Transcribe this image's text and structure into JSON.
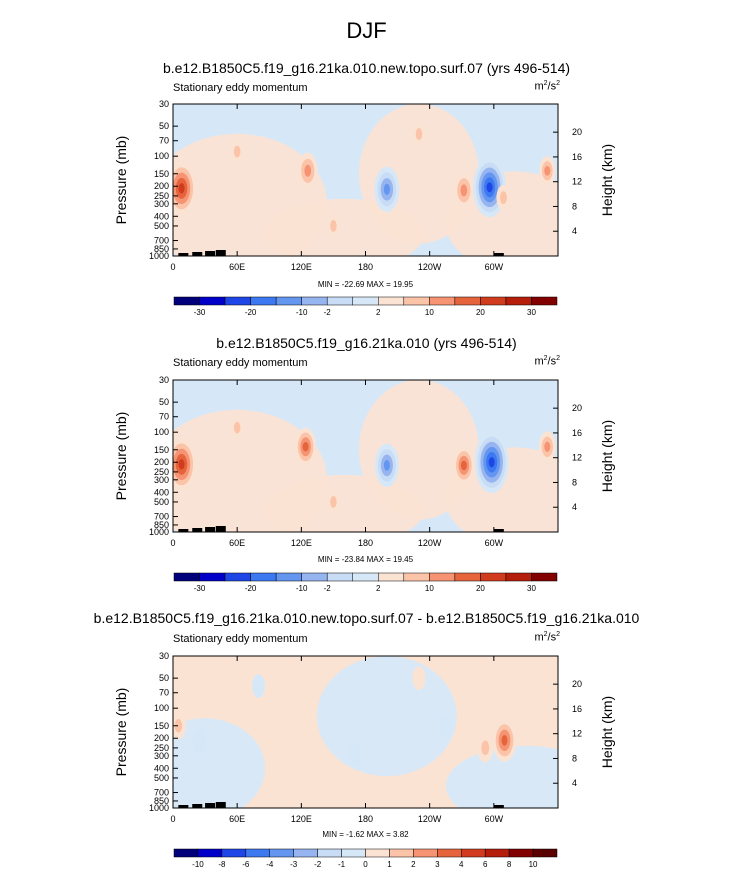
{
  "title": "DJF",
  "panels": [
    {
      "title": "b.e12.B1850C5.f19_g16.21ka.010.new.topo.surf.07 (yrs 496-514)",
      "left_string": "Stationary eddy momentum",
      "units": {
        "base": "m",
        "exp1": "2",
        "slash": "/s",
        "exp2": "2"
      },
      "minmax": "MIN = -22.69   MAX =  19.95"
    },
    {
      "title": "b.e12.B1850C5.f19_g16.21ka.010 (yrs 496-514)",
      "left_string": "Stationary eddy momentum",
      "units": {
        "base": "m",
        "exp1": "2",
        "slash": "/s",
        "exp2": "2"
      },
      "minmax": "MIN = -23.84   MAX =  19.45"
    },
    {
      "title": "b.e12.B1850C5.f19_g16.21ka.010.new.topo.surf.07 - b.e12.B1850C5.f19_g16.21ka.010",
      "left_string": "Stationary eddy momentum",
      "units": {
        "base": "m",
        "exp1": "2",
        "slash": "/s",
        "exp2": "2"
      },
      "minmax": "MIN =  -1.62   MAX =   3.82"
    }
  ],
  "chart_data": [
    {
      "type": "heatmap",
      "title": "b.e12.B1850C5.f19_g16.21ka.010.new.topo.surf.07 (yrs 496-514)",
      "ylabel": "Pressure (mb)",
      "ylabel_right": "Height (km)",
      "x_ticks": [
        "0",
        "60E",
        "120E",
        "180",
        "120W",
        "60W"
      ],
      "x_tick_values": [
        0,
        60,
        120,
        180,
        240,
        300
      ],
      "xlim": [
        0,
        360
      ],
      "y_ticks": [
        "30",
        "50",
        "70",
        "100",
        "150",
        "200",
        "250",
        "300",
        "400",
        "500",
        "700",
        "850",
        "1000"
      ],
      "y_tick_values": [
        30,
        50,
        70,
        100,
        150,
        200,
        250,
        300,
        400,
        500,
        700,
        850,
        1000
      ],
      "ylim": [
        1000,
        30
      ],
      "y_scale": "log",
      "right_ticks": [
        "4",
        "8",
        "12",
        "16",
        "20"
      ],
      "right_tick_values": [
        4,
        8,
        12,
        16,
        20
      ],
      "colorbar_labels": [
        "-30",
        "-20",
        "-10",
        "-2",
        "2",
        "10",
        "20",
        "30"
      ],
      "min": -22.69,
      "max": 19.95,
      "features": [
        {
          "lon": 8,
          "p": 210,
          "value": 18
        },
        {
          "lon": 126,
          "p": 140,
          "value": 9
        },
        {
          "lon": 200,
          "p": 215,
          "value": -14
        },
        {
          "lon": 272,
          "p": 220,
          "value": 9
        },
        {
          "lon": 296,
          "p": 205,
          "value": -22
        },
        {
          "lon": 309,
          "p": 260,
          "value": 3
        },
        {
          "lon": 350,
          "p": 140,
          "value": 5
        },
        {
          "lon": 60,
          "p": 90,
          "value": 2
        },
        {
          "lon": 230,
          "p": 60,
          "value": 2
        },
        {
          "lon": 150,
          "p": 500,
          "value": 2
        }
      ]
    },
    {
      "type": "heatmap",
      "title": "b.e12.B1850C5.f19_g16.21ka.010 (yrs 496-514)",
      "ylabel": "Pressure (mb)",
      "ylabel_right": "Height (km)",
      "x_ticks": [
        "0",
        "60E",
        "120E",
        "180",
        "120W",
        "60W"
      ],
      "x_tick_values": [
        0,
        60,
        120,
        180,
        240,
        300
      ],
      "xlim": [
        0,
        360
      ],
      "y_ticks": [
        "30",
        "50",
        "70",
        "100",
        "150",
        "200",
        "250",
        "300",
        "400",
        "500",
        "700",
        "850",
        "1000"
      ],
      "y_tick_values": [
        30,
        50,
        70,
        100,
        150,
        200,
        250,
        300,
        400,
        500,
        700,
        850,
        1000
      ],
      "ylim": [
        1000,
        30
      ],
      "y_scale": "log",
      "right_ticks": [
        "4",
        "8",
        "12",
        "16",
        "20"
      ],
      "right_tick_values": [
        4,
        8,
        12,
        16,
        20
      ],
      "colorbar_labels": [
        "-30",
        "-20",
        "-10",
        "-2",
        "2",
        "10",
        "20",
        "30"
      ],
      "min": -23.84,
      "max": 19.45,
      "features": [
        {
          "lon": 8,
          "p": 210,
          "value": 18
        },
        {
          "lon": 124,
          "p": 140,
          "value": 10
        },
        {
          "lon": 200,
          "p": 215,
          "value": -13
        },
        {
          "lon": 272,
          "p": 215,
          "value": 10
        },
        {
          "lon": 298,
          "p": 200,
          "value": -23
        },
        {
          "lon": 350,
          "p": 140,
          "value": 6
        },
        {
          "lon": 60,
          "p": 90,
          "value": 2
        },
        {
          "lon": 150,
          "p": 500,
          "value": 2
        }
      ]
    },
    {
      "type": "heatmap",
      "title": "b.e12.B1850C5.f19_g16.21ka.010.new.topo.surf.07 - b.e12.B1850C5.f19_g16.21ka.010",
      "ylabel": "Pressure (mb)",
      "ylabel_right": "Height (km)",
      "x_ticks": [
        "0",
        "60E",
        "120E",
        "180",
        "120W",
        "60W"
      ],
      "x_tick_values": [
        0,
        60,
        120,
        180,
        240,
        300
      ],
      "xlim": [
        0,
        360
      ],
      "y_ticks": [
        "30",
        "50",
        "70",
        "100",
        "150",
        "200",
        "250",
        "300",
        "400",
        "500",
        "700",
        "850",
        "1000"
      ],
      "y_tick_values": [
        30,
        50,
        70,
        100,
        150,
        200,
        250,
        300,
        400,
        500,
        700,
        850,
        1000
      ],
      "ylim": [
        1000,
        30
      ],
      "y_scale": "log",
      "right_ticks": [
        "4",
        "8",
        "12",
        "16",
        "20"
      ],
      "right_tick_values": [
        4,
        8,
        12,
        16,
        20
      ],
      "colorbar_labels": [
        "-10",
        "-8",
        "-6",
        "-4",
        "-3",
        "-2",
        "-1",
        "0",
        "1",
        "2",
        "3",
        "4",
        "6",
        "8",
        "10"
      ],
      "min": -1.62,
      "max": 3.82,
      "features": [
        {
          "lon": 310,
          "p": 210,
          "value": 3.8
        },
        {
          "lon": 292,
          "p": 250,
          "value": 1.5
        },
        {
          "lon": 5,
          "p": 150,
          "value": 1.2
        },
        {
          "lon": 25,
          "p": 220,
          "value": -0.8
        },
        {
          "lon": 80,
          "p": 60,
          "value": -0.6
        },
        {
          "lon": 170,
          "p": 300,
          "value": -0.6
        },
        {
          "lon": 255,
          "p": 150,
          "value": -0.7
        },
        {
          "lon": 120,
          "p": 400,
          "value": 0.6
        },
        {
          "lon": 230,
          "p": 50,
          "value": 0.6
        },
        {
          "lon": 340,
          "p": 120,
          "value": 0.7
        }
      ]
    }
  ],
  "colors": {
    "levels_1": [
      "#00007a",
      "#0000c8",
      "#1e46e6",
      "#3c78f0",
      "#6496f0",
      "#96b4f0",
      "#c8dcf5",
      "#d6e8f8",
      "#fbe3d4",
      "#fbc3a8",
      "#f59373",
      "#e6643c",
      "#d23c1e",
      "#b41e0a",
      "#820000"
    ],
    "levels_2": [
      "#00007a",
      "#0000c8",
      "#1e46e6",
      "#3c78f0",
      "#6496f0",
      "#96b4f0",
      "#c8dcf5",
      "#d6e8f8",
      "#fbe3d4",
      "#fbc3a8",
      "#f59373",
      "#e6643c",
      "#d23c1e",
      "#b41e0a",
      "#820000"
    ],
    "levels_3": [
      "#00007a",
      "#0000c8",
      "#1e46e6",
      "#3c78f0",
      "#6496f0",
      "#96b4f0",
      "#c8dcf5",
      "#d6e8f8",
      "#fbe3d4",
      "#fbc3a8",
      "#f59373",
      "#e6643c",
      "#d23c1e",
      "#b41e0a",
      "#820000",
      "#5a0000"
    ]
  }
}
